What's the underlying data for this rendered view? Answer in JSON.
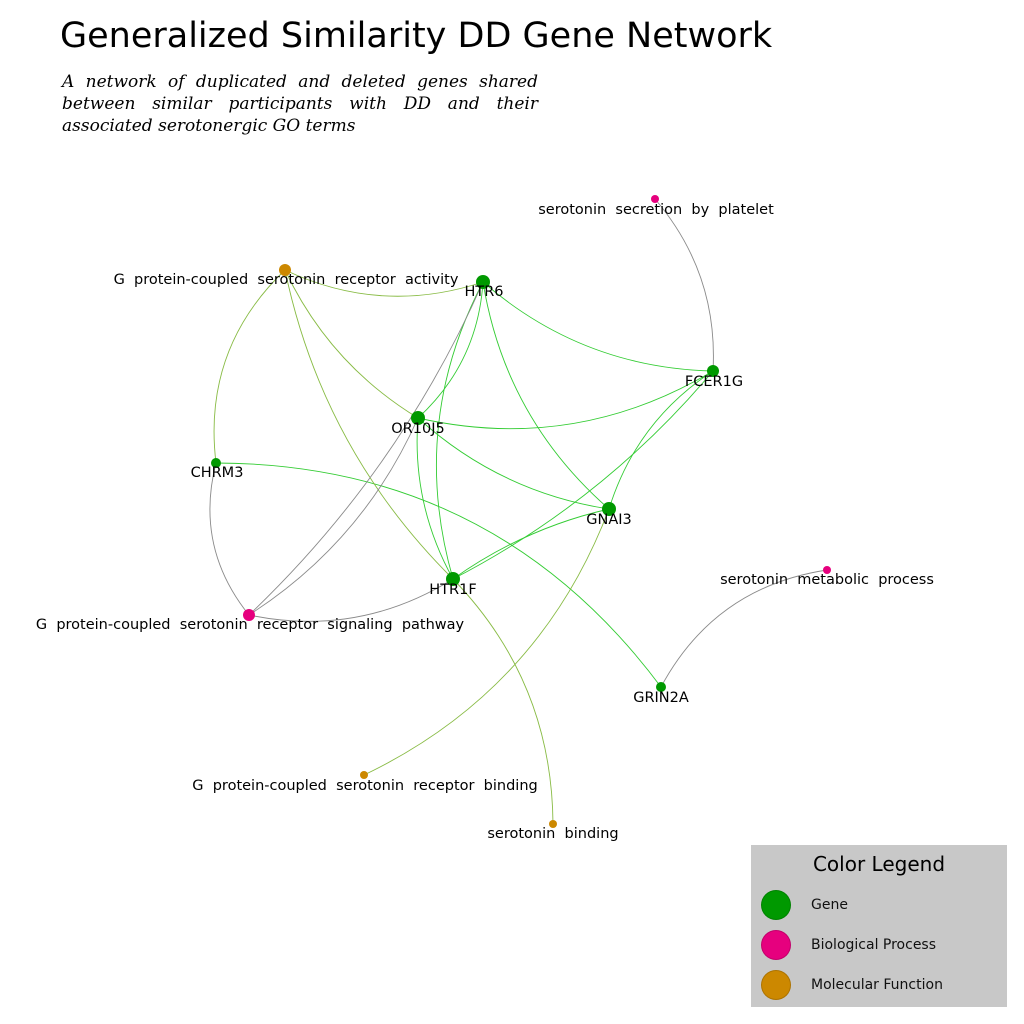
{
  "title": "Generalized Similarity DD Gene Network",
  "subtitle": "A network of duplicated and deleted genes shared between similar participants with DD and their associated serotonergic GO terms",
  "colors": {
    "gene": "#009900",
    "biological_process": "#e6007e",
    "molecular_function": "#cc8800",
    "gene_gene_edge": "#33cc33",
    "gene_mf_edge": "#88bb44",
    "gene_bp_edge": "#8a8a8a"
  },
  "network": {
    "nodes": [
      {
        "id": "HTR6",
        "label": "HTR6",
        "type": "gene"
      },
      {
        "id": "FCER1G",
        "label": "FCER1G",
        "type": "gene"
      },
      {
        "id": "OR10J5",
        "label": "OR10J5",
        "type": "gene"
      },
      {
        "id": "CHRM3",
        "label": "CHRM3",
        "type": "gene"
      },
      {
        "id": "GNAI3",
        "label": "GNAI3",
        "type": "gene"
      },
      {
        "id": "HTR1F",
        "label": "HTR1F",
        "type": "gene"
      },
      {
        "id": "GRIN2A",
        "label": "GRIN2A",
        "type": "gene"
      },
      {
        "id": "ssp",
        "label": "serotonin  secretion  by  platelet",
        "type": "biological_process"
      },
      {
        "id": "gpsra",
        "label": "G  protein-coupled  serotonin  receptor  activity",
        "type": "molecular_function"
      },
      {
        "id": "gpsrsp",
        "label": "G  protein-coupled  serotonin  receptor  signaling  pathway",
        "type": "biological_process"
      },
      {
        "id": "smp",
        "label": "serotonin  metabolic  process",
        "type": "biological_process"
      },
      {
        "id": "gpsrb",
        "label": "G  protein-coupled  serotonin  receptor  binding",
        "type": "molecular_function"
      },
      {
        "id": "sb",
        "label": "serotonin  binding",
        "type": "molecular_function"
      }
    ],
    "edges": [
      {
        "source": "HTR6",
        "target": "FCER1G",
        "kind": "gene_gene_edge"
      },
      {
        "source": "HTR6",
        "target": "OR10J5",
        "kind": "gene_gene_edge"
      },
      {
        "source": "HTR6",
        "target": "GNAI3",
        "kind": "gene_gene_edge"
      },
      {
        "source": "HTR6",
        "target": "HTR1F",
        "kind": "gene_gene_edge"
      },
      {
        "source": "OR10J5",
        "target": "FCER1G",
        "kind": "gene_gene_edge"
      },
      {
        "source": "OR10J5",
        "target": "GNAI3",
        "kind": "gene_gene_edge"
      },
      {
        "source": "OR10J5",
        "target": "HTR1F",
        "kind": "gene_gene_edge"
      },
      {
        "source": "FCER1G",
        "target": "GNAI3",
        "kind": "gene_gene_edge"
      },
      {
        "source": "FCER1G",
        "target": "HTR1F",
        "kind": "gene_gene_edge"
      },
      {
        "source": "GNAI3",
        "target": "HTR1F",
        "kind": "gene_gene_edge"
      },
      {
        "source": "CHRM3",
        "target": "GRIN2A",
        "kind": "gene_gene_edge"
      },
      {
        "source": "gpsra",
        "target": "HTR6",
        "kind": "gene_mf_edge"
      },
      {
        "source": "gpsra",
        "target": "OR10J5",
        "kind": "gene_mf_edge"
      },
      {
        "source": "gpsra",
        "target": "CHRM3",
        "kind": "gene_mf_edge"
      },
      {
        "source": "gpsra",
        "target": "HTR1F",
        "kind": "gene_mf_edge"
      },
      {
        "source": "GNAI3",
        "target": "gpsrb",
        "kind": "gene_mf_edge"
      },
      {
        "source": "HTR1F",
        "target": "sb",
        "kind": "gene_mf_edge"
      },
      {
        "source": "ssp",
        "target": "FCER1G",
        "kind": "gene_bp_edge"
      },
      {
        "source": "smp",
        "target": "GRIN2A",
        "kind": "gene_bp_edge"
      },
      {
        "source": "gpsrsp",
        "target": "CHRM3",
        "kind": "gene_bp_edge"
      },
      {
        "source": "gpsrsp",
        "target": "HTR6",
        "kind": "gene_bp_edge"
      },
      {
        "source": "gpsrsp",
        "target": "OR10J5",
        "kind": "gene_bp_edge"
      },
      {
        "source": "gpsrsp",
        "target": "HTR1F",
        "kind": "gene_bp_edge"
      }
    ]
  },
  "legend": {
    "title": "Color Legend",
    "items": [
      {
        "label": "Gene",
        "color": "#009900"
      },
      {
        "label": "Biological Process",
        "color": "#e6007e"
      },
      {
        "label": "Molecular Function",
        "color": "#cc8800"
      }
    ]
  }
}
